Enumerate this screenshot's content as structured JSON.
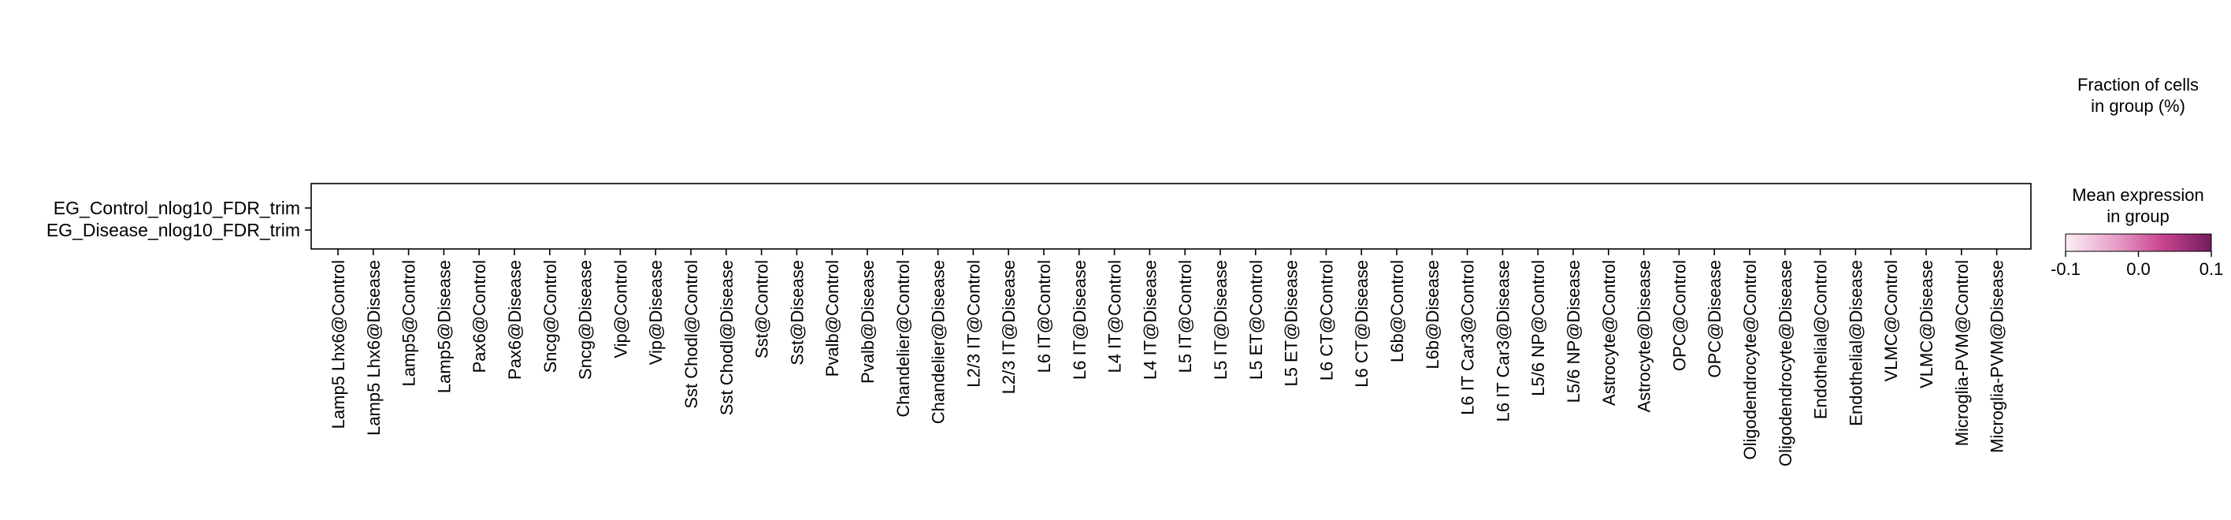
{
  "chart_data": {
    "type": "dotplot",
    "rows": [
      "EG_Control_nlog10_FDR_trim",
      "EG_Disease_nlog10_FDR_trim"
    ],
    "columns": [
      "Lamp5 Lhx6@Control",
      "Lamp5 Lhx6@Disease",
      "Lamp5@Control",
      "Lamp5@Disease",
      "Pax6@Control",
      "Pax6@Disease",
      "Sncg@Control",
      "Sncg@Disease",
      "Vip@Control",
      "Vip@Disease",
      "Sst Chodl@Control",
      "Sst Chodl@Disease",
      "Sst@Control",
      "Sst@Disease",
      "Pvalb@Control",
      "Pvalb@Disease",
      "Chandelier@Control",
      "Chandelier@Disease",
      "L2/3 IT@Control",
      "L2/3 IT@Disease",
      "L6 IT@Control",
      "L6 IT@Disease",
      "L4 IT@Control",
      "L4 IT@Disease",
      "L5 IT@Control",
      "L5 IT@Disease",
      "L5 ET@Control",
      "L5 ET@Disease",
      "L6 CT@Control",
      "L6 CT@Disease",
      "L6b@Control",
      "L6b@Disease",
      "L6 IT Car3@Control",
      "L6 IT Car3@Disease",
      "L5/6 NP@Control",
      "L5/6 NP@Disease",
      "Astrocyte@Control",
      "Astrocyte@Disease",
      "OPC@Control",
      "OPC@Disease",
      "Oligodendrocyte@Control",
      "Oligodendrocyte@Disease",
      "Endothelial@Control",
      "Endothelial@Disease",
      "VLMC@Control",
      "VLMC@Disease",
      "Microglia-PVM@Control",
      "Microglia-PVM@Disease"
    ],
    "dots": [],
    "size_legend_title": "Fraction of cells\nin group (%)",
    "color_legend_title": "Mean expression\nin group",
    "colorbar": {
      "ticks": [
        "-0.1",
        "0.0",
        "0.1"
      ],
      "range": [
        -0.1,
        0.1
      ],
      "colors": [
        "#fbeef4",
        "#e7a2c9",
        "#c9448f",
        "#741c5e"
      ]
    },
    "grid": false
  }
}
